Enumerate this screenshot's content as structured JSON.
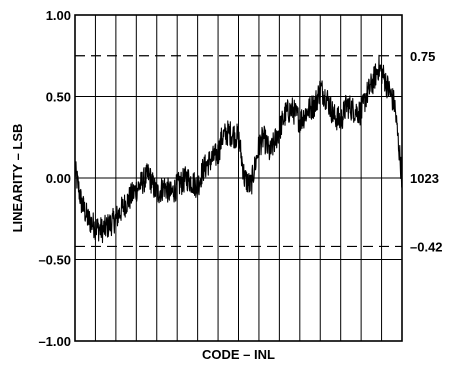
{
  "chart_data": {
    "type": "line",
    "xlabel": "CODE – INL",
    "ylabel": "LINEARITY – LSB",
    "xlim": [
      0,
      1023
    ],
    "ylim": [
      -1.0,
      1.0
    ],
    "y_ticks": [
      {
        "value": 1.0,
        "label": "1.00"
      },
      {
        "value": 0.5,
        "label": "0.50"
      },
      {
        "value": 0.0,
        "label": "0.00"
      },
      {
        "value": -0.5,
        "label": "–0.50"
      },
      {
        "value": -1.0,
        "label": "–1.00"
      }
    ],
    "x_grid_divisions": 16,
    "grid": true,
    "reference_lines": [
      {
        "value": 0.75,
        "label": "0.75",
        "style": "dashed"
      },
      {
        "value": -0.42,
        "label": "–0.42",
        "style": "dashed"
      }
    ],
    "end_annotation": {
      "x": 1023,
      "y": 0.0,
      "label": "1023"
    },
    "series": [
      {
        "x": [
          0,
          20,
          40,
          64,
          85,
          100,
          128,
          150,
          180,
          200,
          230,
          256,
          280,
          300,
          320,
          350,
          384,
          400,
          420,
          448,
          460,
          480,
          512,
          530,
          550,
          576,
          590,
          610,
          640,
          660,
          680,
          704,
          730,
          750,
          768,
          790,
          810,
          832,
          850,
          870,
          896,
          910,
          930,
          950,
          960,
          980,
          1000,
          1010,
          1023
        ],
        "y": [
          0.05,
          -0.15,
          -0.25,
          -0.3,
          -0.32,
          -0.3,
          -0.25,
          -0.18,
          -0.1,
          -0.05,
          0.02,
          -0.1,
          -0.05,
          -0.1,
          -0.05,
          0.0,
          -0.05,
          0.05,
          0.1,
          0.15,
          0.25,
          0.28,
          0.25,
          0.0,
          -0.05,
          0.2,
          0.25,
          0.15,
          0.3,
          0.4,
          0.42,
          0.35,
          0.42,
          0.45,
          0.55,
          0.48,
          0.38,
          0.35,
          0.45,
          0.42,
          0.4,
          0.5,
          0.58,
          0.68,
          0.65,
          0.55,
          0.45,
          0.25,
          0.0
        ],
        "noise_amplitude": 0.08
      }
    ]
  }
}
